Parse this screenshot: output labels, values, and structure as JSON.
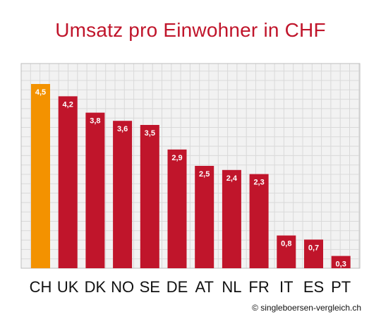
{
  "chart_data": {
    "type": "bar",
    "title": "Umsatz pro Einwohner in CHF",
    "categories": [
      "CH",
      "UK",
      "DK",
      "NO",
      "SE",
      "DE",
      "AT",
      "NL",
      "FR",
      "IT",
      "ES",
      "PT"
    ],
    "values": [
      4.5,
      4.2,
      3.8,
      3.6,
      3.5,
      2.9,
      2.5,
      2.4,
      2.3,
      0.8,
      0.7,
      0.3
    ],
    "value_labels": [
      "4,5",
      "4,2",
      "3,8",
      "3,6",
      "3,5",
      "2,9",
      "2,5",
      "2,4",
      "2,3",
      "0,8",
      "0,7",
      "0,3"
    ],
    "xlabel": "",
    "ylabel": "",
    "ylim": [
      0,
      5
    ],
    "grid": true,
    "legend": "none"
  },
  "colors": {
    "title": "#c0152b",
    "bar_default": "#c0152b",
    "bar_highlight": "#f39200",
    "highlight_category": "CH",
    "grid_line": "#d9d9d9",
    "plot_background": "#f2f2f2",
    "frame": "#bdbdbd",
    "value_label": "#ffffff",
    "tick_label": "#111111"
  },
  "footer": {
    "copyright": "© singleboersen-vergleich.ch"
  }
}
